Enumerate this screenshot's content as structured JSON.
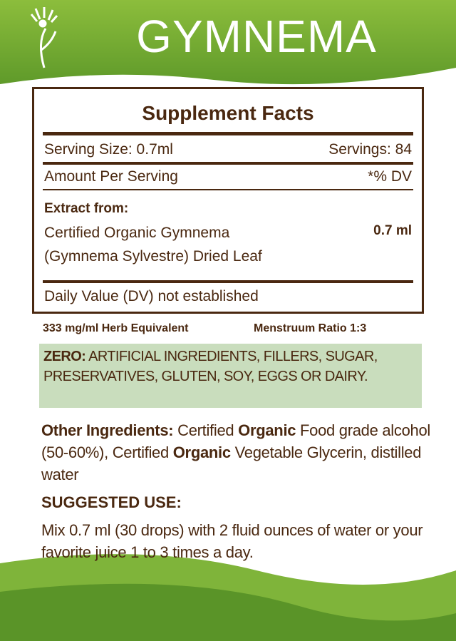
{
  "header": {
    "title": "GYMNEMA"
  },
  "facts": {
    "title": "Supplement Facts",
    "serving_size": "Serving Size: 0.7ml",
    "servings": "Servings: 84",
    "amount_per_serving": "Amount Per Serving",
    "dv": "*% DV",
    "extract_label": "Extract from:",
    "ingredient_lines": [
      "Certified Organic Gymnema",
      "(Gymnema Sylvestre) Dried Leaf"
    ],
    "amount": "0.7 ml",
    "footnote": "Daily Value (DV) not established"
  },
  "ratio": {
    "herb": "333 mg/ml Herb Equivalent",
    "menstruum": "Menstruum Ratio 1:3"
  },
  "zero": {
    "label": "ZERO:",
    "text": "ARTIFICIAL INGREDIENTS, FILLERS, SUGAR, PRESERVATIVES, GLUTEN, SOY, EGGS OR DAIRY."
  },
  "other": {
    "label": "Other Ingredients:",
    "parts": [
      "Certified ",
      "Organic",
      " Food grade alcohol (50-60%), Certified ",
      "Organic",
      " Vegetable Glycerin, distilled water"
    ]
  },
  "suggested": {
    "title": "SUGGESTED USE:",
    "text": "Mix 0.7 ml (30 drops) with 2 fluid ounces of water or your favorite juice 1 to 3 times a day."
  }
}
